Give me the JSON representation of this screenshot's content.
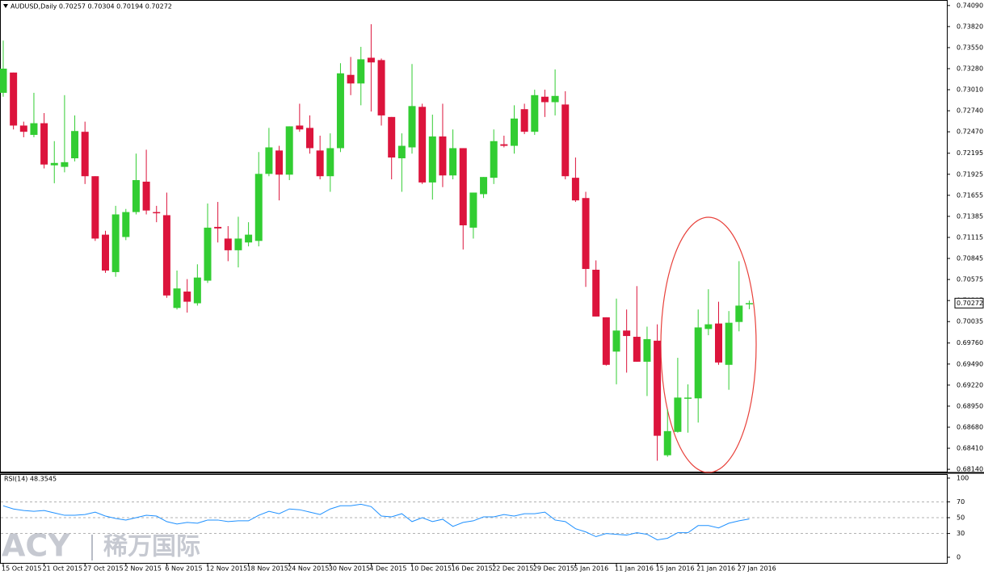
{
  "chart_data": {
    "type": "candlestick",
    "header": "AUDUSD,Daily  0.70257 0.70304 0.70194 0.70272",
    "categories": [
      "15 Oct 2015",
      null,
      null,
      null,
      "21 Oct 2015",
      null,
      null,
      null,
      "27 Oct 2015",
      null,
      null,
      null,
      "2 Nov 2015",
      null,
      null,
      null,
      "6 Nov 2015",
      null,
      null,
      null,
      "12 Nov 2015",
      null,
      null,
      null,
      "18 Nov 2015",
      null,
      null,
      null,
      "24 Nov 2015",
      null,
      null,
      null,
      "30 Nov 2015",
      null,
      null,
      null,
      "4 Dec 2015",
      null,
      null,
      null,
      "10 Dec 2015",
      null,
      null,
      null,
      "16 Dec 2015",
      null,
      null,
      null,
      "22 Dec 2015",
      null,
      null,
      null,
      "29 Dec 2015",
      null,
      null,
      null,
      "5 Jan 2016",
      null,
      null,
      null,
      "11 Jan 2016",
      null,
      null,
      null,
      "15 Jan 2016",
      null,
      null,
      null,
      "21 Jan 2016",
      null,
      null,
      null,
      "27 Jan 2016",
      null
    ],
    "open": [
      0.7297,
      0.7323,
      0.7255,
      0.7243,
      0.7258,
      0.7204,
      0.7202,
      0.7213,
      0.7247,
      0.719,
      0.7115,
      0.7067,
      0.7112,
      0.7144,
      0.7183,
      0.7144,
      0.714,
      0.7021,
      0.7042,
      0.7027,
      0.7056,
      0.7125,
      0.711,
      0.7095,
      0.7105,
      0.7107,
      0.7193,
      0.7223,
      0.7192,
      0.7255,
      0.7252,
      0.7223,
      0.719,
      0.7226,
      0.732,
      0.7309,
      0.7342,
      0.7339,
      0.7266,
      0.7213,
      0.7227,
      0.7279,
      0.7182,
      0.7241,
      0.7191,
      0.7226,
      0.7124,
      0.7167,
      0.7188,
      0.7231,
      0.7229,
      0.7276,
      0.7247,
      0.7292,
      0.7285,
      0.7282,
      0.7188,
      0.7162,
      0.707,
      0.7009,
      0.6965,
      0.6992,
      0.6984,
      0.6952,
      0.6979,
      0.6832,
      0.6862,
      0.6905,
      0.6905,
      0.6994,
      0.7001,
      0.6948,
      0.7003,
      0.70257
    ],
    "high": [
      0.7364,
      0.7323,
      0.726,
      0.7297,
      0.7271,
      0.7235,
      0.7294,
      0.7268,
      0.726,
      0.719,
      0.712,
      0.7152,
      0.7148,
      0.7219,
      0.7224,
      0.7152,
      0.7169,
      0.7069,
      0.7058,
      0.7077,
      0.7155,
      0.7157,
      0.7126,
      0.7138,
      0.7131,
      0.7221,
      0.7252,
      0.7229,
      0.7254,
      0.7283,
      0.7268,
      0.7242,
      0.7245,
      0.7335,
      0.7343,
      0.7356,
      0.7385,
      0.7341,
      0.7266,
      0.7245,
      0.7334,
      0.7283,
      0.7269,
      0.7283,
      0.725,
      0.7226,
      0.7169,
      0.7189,
      0.725,
      0.7242,
      0.7281,
      0.7283,
      0.7301,
      0.7301,
      0.7327,
      0.7299,
      0.7214,
      0.717,
      0.7082,
      0.7009,
      0.7033,
      0.7019,
      0.7049,
      0.6997,
      0.7,
      0.6891,
      0.6957,
      0.6923,
      0.7019,
      0.7045,
      0.7029,
      0.7017,
      0.7081,
      0.70304
    ],
    "low": [
      0.7292,
      0.725,
      0.724,
      0.724,
      0.72,
      0.7181,
      0.7195,
      0.7209,
      0.718,
      0.7107,
      0.7066,
      0.7061,
      0.7108,
      0.7141,
      0.7141,
      0.7131,
      0.7034,
      0.7019,
      0.7015,
      0.7024,
      0.7053,
      0.7105,
      0.7081,
      0.7073,
      0.71,
      0.71,
      0.719,
      0.7159,
      0.7185,
      0.7247,
      0.7219,
      0.7186,
      0.717,
      0.7221,
      0.7294,
      0.7281,
      0.7273,
      0.7255,
      0.7186,
      0.717,
      0.7219,
      0.718,
      0.716,
      0.7176,
      0.7186,
      0.7096,
      0.711,
      0.7162,
      0.718,
      0.7227,
      0.7219,
      0.7244,
      0.7243,
      0.7266,
      0.7268,
      0.7186,
      0.7157,
      0.7048,
      0.701,
      0.6947,
      0.6923,
      0.6938,
      0.6952,
      0.6908,
      0.6825,
      0.683,
      0.6861,
      0.6861,
      0.6874,
      0.6986,
      0.6948,
      0.6916,
      0.6991,
      0.70194
    ],
    "close": [
      0.7328,
      0.7255,
      0.7247,
      0.7258,
      0.7205,
      0.7207,
      0.7208,
      0.7248,
      0.719,
      0.711,
      0.7069,
      0.7141,
      0.7144,
      0.7185,
      0.7146,
      0.7143,
      0.7037,
      0.7046,
      0.7029,
      0.706,
      0.7124,
      0.7123,
      0.7095,
      0.711,
      0.7115,
      0.7193,
      0.7227,
      0.7192,
      0.7254,
      0.725,
      0.7226,
      0.719,
      0.7226,
      0.7322,
      0.7309,
      0.734,
      0.7336,
      0.7268,
      0.7214,
      0.7229,
      0.728,
      0.7182,
      0.7241,
      0.7191,
      0.7226,
      0.7127,
      0.7169,
      0.7189,
      0.7235,
      0.7229,
      0.7264,
      0.7247,
      0.7294,
      0.7285,
      0.7293,
      0.719,
      0.7159,
      0.7071,
      0.701,
      0.6948,
      0.6992,
      0.6985,
      0.6952,
      0.6981,
      0.6857,
      0.6863,
      0.6906,
      0.6906,
      0.6996,
      0.7,
      0.6951,
      0.7002,
      0.7024,
      0.70272
    ],
    "up_color": "#32cd32",
    "down_color": "#dc143c",
    "ylim": [
      0.6811,
      0.7414
    ],
    "yticks": [
      {
        "value": 0.7409,
        "label": "0.74090"
      },
      {
        "value": 0.7382,
        "label": "0.73820"
      },
      {
        "value": 0.7355,
        "label": "0.73550"
      },
      {
        "value": 0.7328,
        "label": "0.73280"
      },
      {
        "value": 0.7301,
        "label": "0.73010"
      },
      {
        "value": 0.7274,
        "label": "0.72740"
      },
      {
        "value": 0.7247,
        "label": "0.72470"
      },
      {
        "value": 0.72195,
        "label": "0.72195"
      },
      {
        "value": 0.71925,
        "label": "0.71925"
      },
      {
        "value": 0.71655,
        "label": "0.71655"
      },
      {
        "value": 0.71385,
        "label": "0.71385"
      },
      {
        "value": 0.71115,
        "label": "0.71115"
      },
      {
        "value": 0.70845,
        "label": "0.70845"
      },
      {
        "value": 0.70575,
        "label": "0.70575"
      },
      {
        "value": 0.70305,
        "label": "0.70305"
      },
      {
        "value": 0.70035,
        "label": "0.70035"
      },
      {
        "value": 0.6976,
        "label": "0.69760"
      },
      {
        "value": 0.6949,
        "label": "0.69490"
      },
      {
        "value": 0.6922,
        "label": "0.69220"
      },
      {
        "value": 0.6895,
        "label": "0.68950"
      },
      {
        "value": 0.6868,
        "label": "0.68680"
      },
      {
        "value": 0.6841,
        "label": "0.68410"
      },
      {
        "value": 0.6814,
        "label": "0.68140"
      }
    ],
    "current_price": {
      "value": 0.70272,
      "label": "0.70272"
    },
    "rsi": {
      "label": "RSI(14) 48.3545",
      "color": "#1e90ff",
      "values": [
        65,
        61,
        59,
        58,
        59,
        56,
        53,
        53,
        54,
        57,
        52,
        49,
        47,
        50,
        53,
        52,
        45,
        42,
        44,
        43,
        47,
        47,
        45,
        46,
        46,
        53,
        58,
        55,
        61,
        60,
        57,
        54,
        61,
        65,
        65,
        67,
        64,
        52,
        51,
        55,
        45,
        50,
        45,
        48,
        39,
        44,
        46,
        51,
        51,
        54,
        52,
        55,
        55,
        57,
        47,
        45,
        36,
        32,
        26,
        30,
        29,
        28,
        31,
        29,
        22,
        24,
        31,
        31,
        40,
        40,
        37,
        43,
        46,
        48.3545
      ],
      "ylim": [
        0,
        100
      ],
      "yticks": [
        100,
        70,
        50,
        30,
        0
      ],
      "levels": [
        70,
        50,
        30
      ]
    },
    "watermark": {
      "brand": "ACY",
      "name": "稀万国际"
    }
  }
}
